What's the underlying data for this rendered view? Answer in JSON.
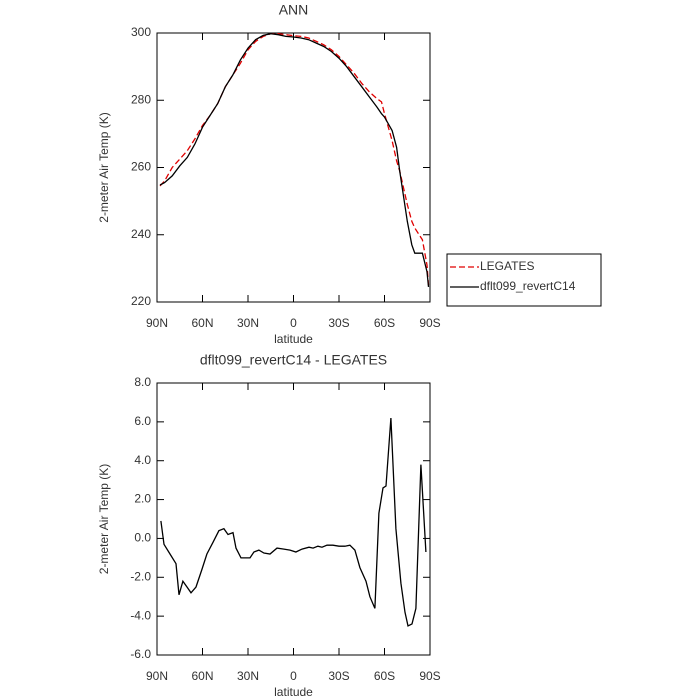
{
  "chart_data": [
    {
      "type": "line",
      "title": "ANN",
      "xlabel": "latitude",
      "ylabel": "2-meter Air Temp (K)",
      "xlim": [
        90,
        -90
      ],
      "xticks": [
        {
          "value": 90,
          "label": "90N"
        },
        {
          "value": 60,
          "label": "60N"
        },
        {
          "value": 30,
          "label": "30N"
        },
        0,
        {
          "value": -30,
          "label": "30S"
        },
        {
          "value": -60,
          "label": "60S"
        },
        {
          "value": -90,
          "label": "90S"
        }
      ],
      "ylim": [
        220,
        300
      ],
      "yticks": [
        220,
        240,
        260,
        280,
        300
      ],
      "legend": "right",
      "x": [
        88,
        85,
        80,
        75,
        70,
        65,
        60,
        55,
        50,
        45,
        40,
        35,
        30,
        25,
        20,
        15,
        10,
        5,
        0,
        -5,
        -10,
        -15,
        -20,
        -25,
        -30,
        -35,
        -40,
        -45,
        -50,
        -55,
        -58,
        -60,
        -65,
        -68,
        -70,
        -75,
        -78,
        -80,
        -85,
        -88,
        -89
      ],
      "series": [
        {
          "name": "LEGATES",
          "color": "#e00000",
          "dashed": true,
          "values": [
            254.5,
            256,
            260,
            262.5,
            265,
            268.5,
            272.5,
            275.5,
            279,
            284,
            287.5,
            291,
            295,
            297.5,
            299,
            299.8,
            299.8,
            299.5,
            299.2,
            299,
            298.5,
            297.5,
            296.5,
            295,
            293,
            290.5,
            288,
            285,
            282.5,
            280.5,
            279.5,
            276,
            268,
            262,
            259,
            249,
            244,
            242,
            238.5,
            231,
            225
          ]
        },
        {
          "name": "dflt099_revertC14",
          "color": "#000000",
          "dashed": false,
          "values": [
            254.8,
            255.5,
            257.5,
            260.5,
            263,
            267,
            272,
            275.5,
            279,
            284,
            287.5,
            292,
            295.5,
            298,
            299.3,
            299.8,
            299.5,
            299,
            298.8,
            298.5,
            298,
            297,
            296,
            294.5,
            292.5,
            290,
            287,
            284,
            281,
            278,
            276,
            275,
            271,
            266,
            259,
            244,
            237,
            234.5,
            234.5,
            229,
            224.5
          ]
        }
      ]
    },
    {
      "type": "line",
      "title": "dflt099_revertC14 - LEGATES",
      "xlabel": "latitude",
      "ylabel": "2-meter Air Temp (K)",
      "xlim": [
        90,
        -90
      ],
      "xticks": [
        {
          "value": 90,
          "label": "90N"
        },
        {
          "value": 60,
          "label": "60N"
        },
        {
          "value": 30,
          "label": "30N"
        },
        0,
        {
          "value": -30,
          "label": "30S"
        },
        {
          "value": -60,
          "label": "60S"
        },
        {
          "value": -90,
          "label": "90S"
        }
      ],
      "ylim": [
        -6,
        8
      ],
      "yticks": [
        {
          "value": -6,
          "label": "-6.0"
        },
        {
          "value": -4,
          "label": "-4.0"
        },
        {
          "value": -2,
          "label": "-2.0"
        },
        {
          "value": 0,
          "label": "0.0"
        },
        {
          "value": 2,
          "label": "2.0"
        },
        {
          "value": 4,
          "label": "4.0"
        },
        {
          "value": 6,
          "label": "6.0"
        },
        {
          "value": 8,
          "label": "8.0"
        }
      ],
      "x": [
        87.4,
        85.4,
        81.4,
        77.5,
        75.5,
        72.9,
        70.2,
        67.6,
        64.3,
        60.4,
        57.1,
        53.1,
        49.2,
        45.9,
        43.2,
        39.9,
        37.9,
        34.6,
        28.7,
        26.1,
        22.8,
        19.5,
        15.5,
        10.9,
        6.3,
        2.3,
        -1.6,
        -5.6,
        -10.2,
        -12.9,
        -16.1,
        -18.8,
        -22.1,
        -26,
        -30,
        -33.9,
        -37.2,
        -40.5,
        -43.8,
        -47.8,
        -50.4,
        -53.7,
        -56.3,
        -59,
        -61,
        -64.2,
        -67.5,
        -70.8,
        -73.5,
        -75.5,
        -78.1,
        -80.7,
        -84,
        -87.3
      ],
      "series": [
        {
          "color": "#000000",
          "dashed": false,
          "values": [
            0.9,
            -0.3,
            -0.8,
            -1.3,
            -2.9,
            -2.2,
            -2.5,
            -2.8,
            -2.5,
            -1.6,
            -0.8,
            -0.2,
            0.4,
            0.5,
            0.2,
            0.3,
            -0.5,
            -1,
            -1,
            -0.7,
            -0.6,
            -0.75,
            -0.8,
            -0.5,
            -0.55,
            -0.6,
            -0.7,
            -0.55,
            -0.45,
            -0.5,
            -0.4,
            -0.45,
            -0.35,
            -0.35,
            -0.4,
            -0.4,
            -0.35,
            -0.6,
            -1.5,
            -2.2,
            -3,
            -3.6,
            1.3,
            2.6,
            2.7,
            6.2,
            0.5,
            -2.3,
            -3.8,
            -4.5,
            -4.4,
            -3.6,
            3.8,
            -0.7
          ]
        }
      ]
    }
  ]
}
